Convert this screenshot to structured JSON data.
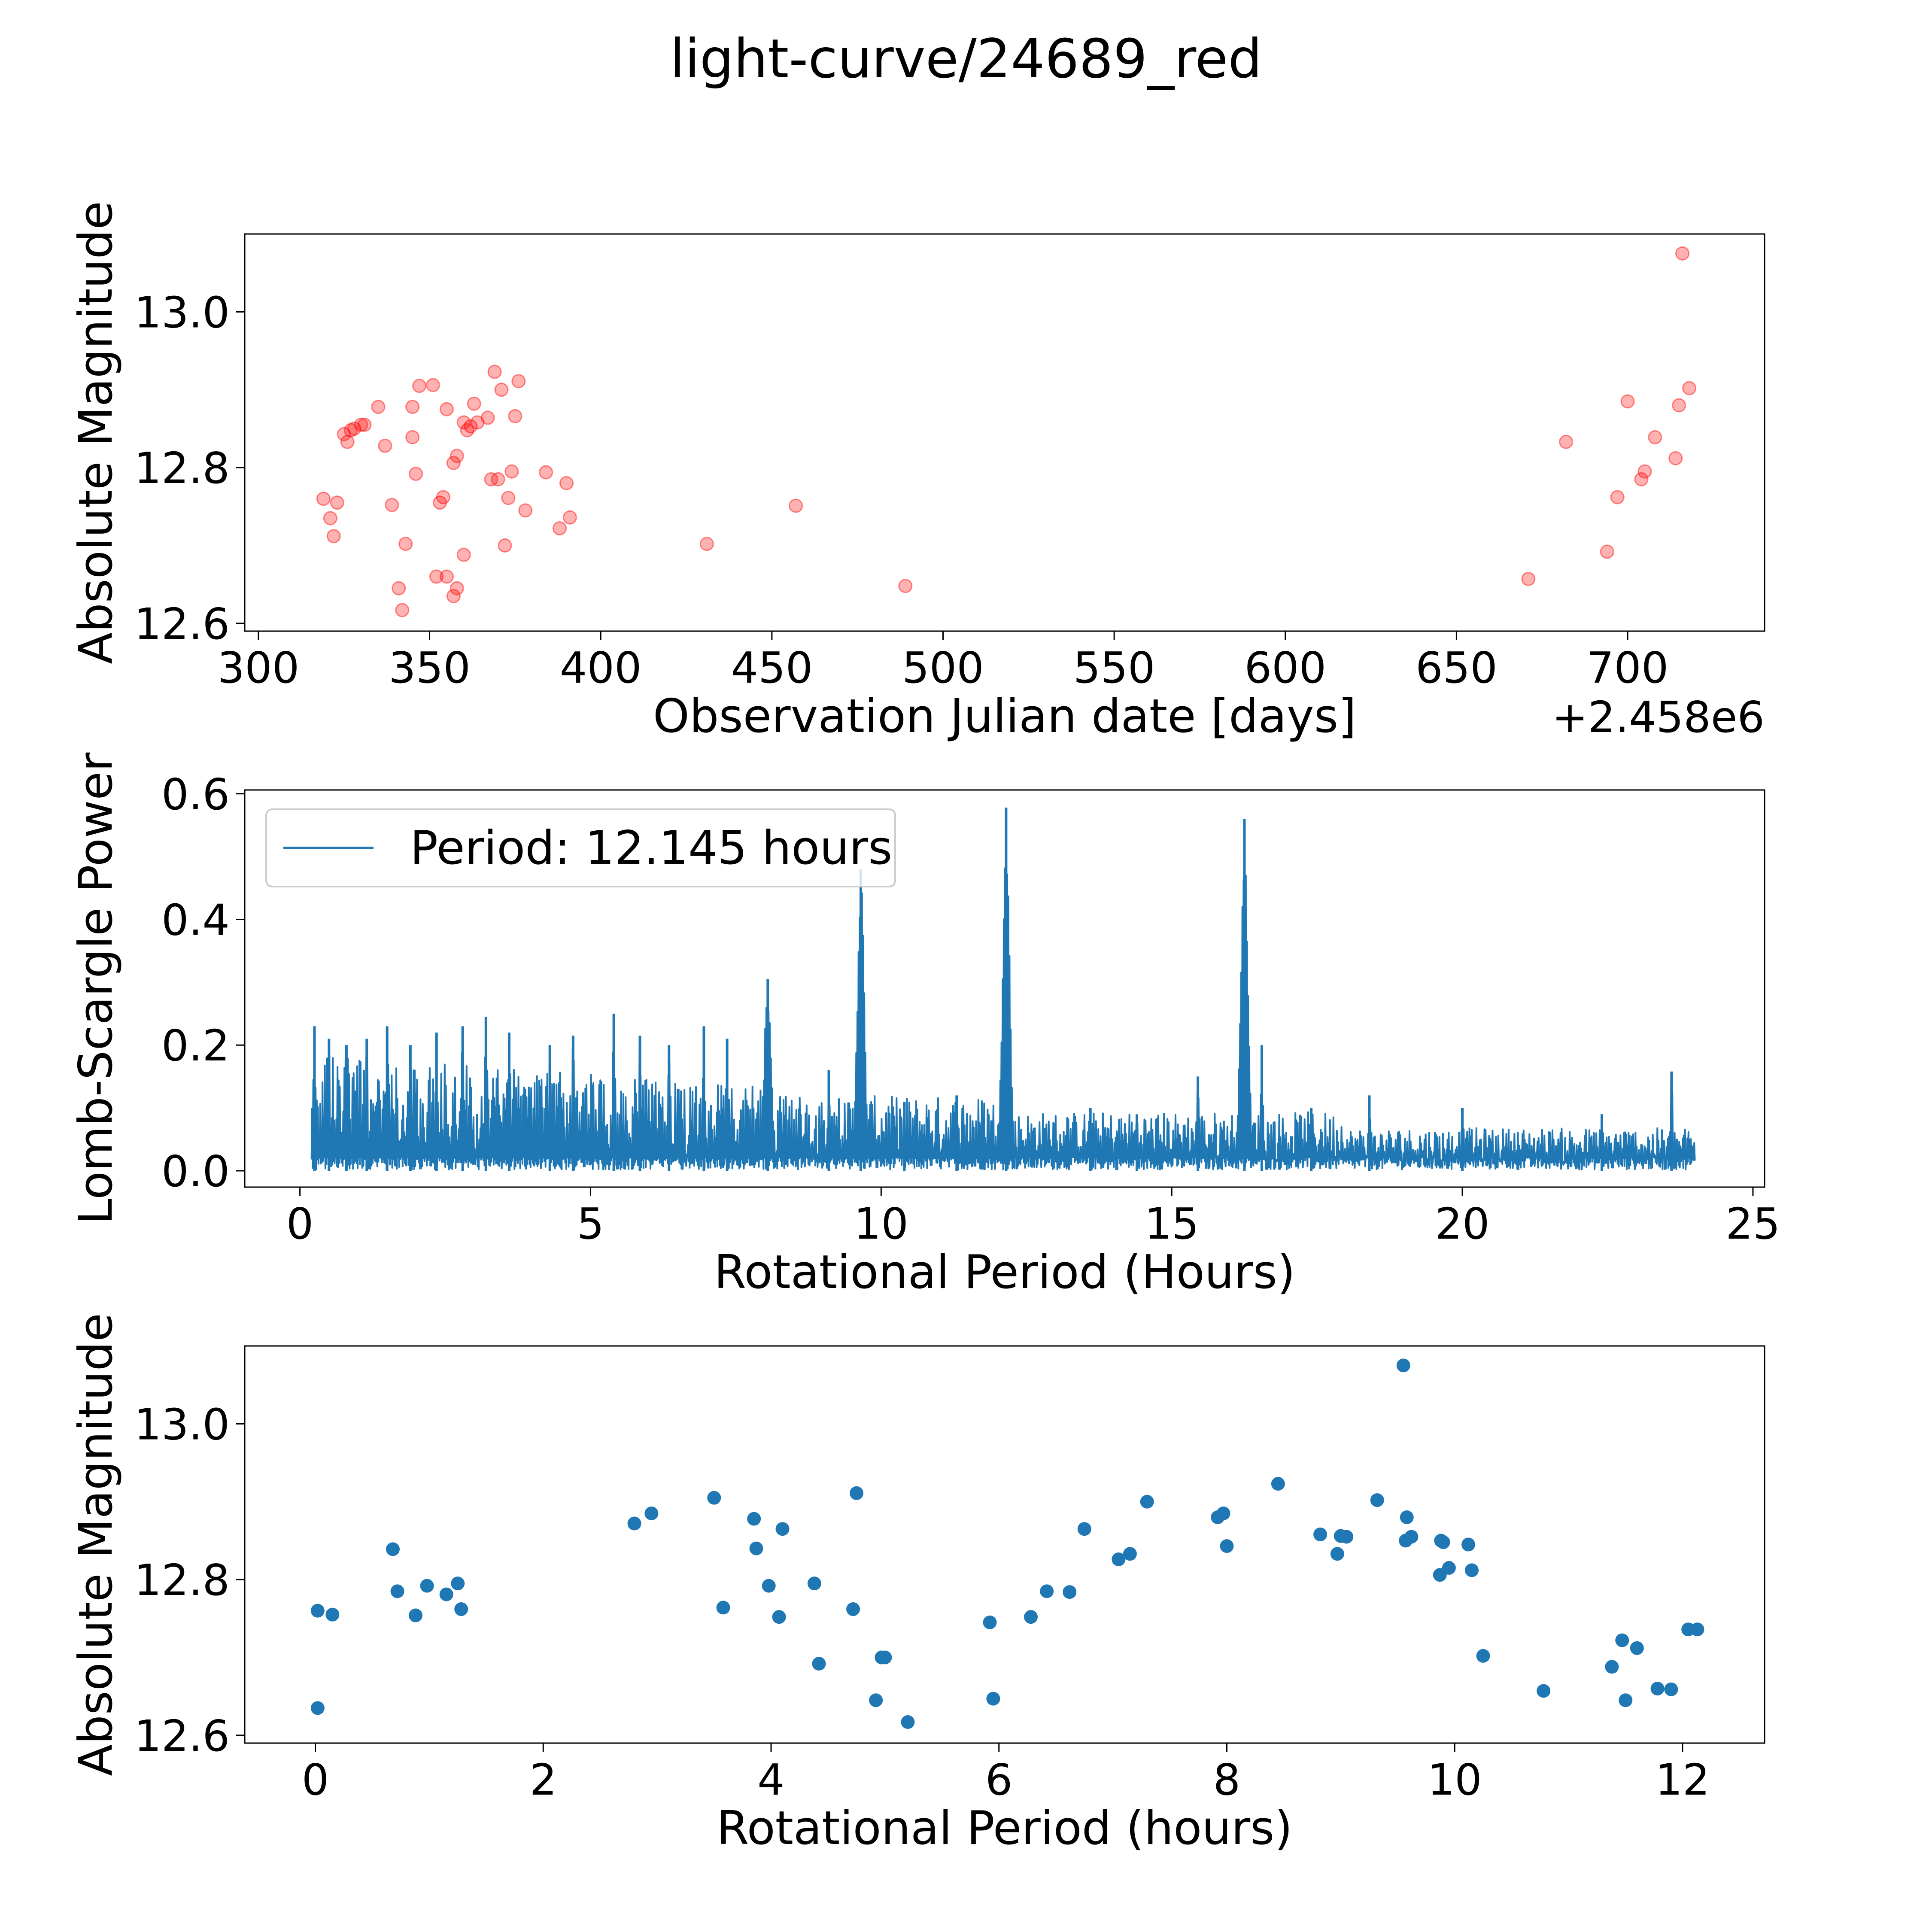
{
  "figure_title": "light-curve/24689_red",
  "chart_data": [
    {
      "type": "scatter",
      "title": "",
      "xlabel": "Observation Julian date [days]",
      "ylabel": "Absolute Magnitude",
      "x_offset_label": "+2.458e6",
      "xlim": [
        296,
        740
      ],
      "ylim": [
        12.59,
        13.1
      ],
      "xticks": [
        300,
        350,
        400,
        450,
        500,
        550,
        600,
        650,
        700
      ],
      "xtick_labels": [
        "300",
        "350",
        "400",
        "450",
        "500",
        "550",
        "600",
        "650",
        "700"
      ],
      "yticks": [
        12.6,
        12.8,
        13.0
      ],
      "ytick_labels": [
        "12.6",
        "12.8",
        "13.0"
      ],
      "marker_color": "#ff0000",
      "marker_alpha": 0.3,
      "points": [
        {
          "x": 319,
          "y": 12.76
        },
        {
          "x": 321,
          "y": 12.735
        },
        {
          "x": 322,
          "y": 12.712
        },
        {
          "x": 323,
          "y": 12.755
        },
        {
          "x": 325,
          "y": 12.843
        },
        {
          "x": 326,
          "y": 12.833
        },
        {
          "x": 327,
          "y": 12.848
        },
        {
          "x": 328,
          "y": 12.85
        },
        {
          "x": 330,
          "y": 12.855
        },
        {
          "x": 331,
          "y": 12.855
        },
        {
          "x": 335,
          "y": 12.878
        },
        {
          "x": 337,
          "y": 12.828
        },
        {
          "x": 339,
          "y": 12.752
        },
        {
          "x": 341,
          "y": 12.645
        },
        {
          "x": 342,
          "y": 12.617
        },
        {
          "x": 343,
          "y": 12.702
        },
        {
          "x": 345,
          "y": 12.878
        },
        {
          "x": 345,
          "y": 12.839
        },
        {
          "x": 346,
          "y": 12.792
        },
        {
          "x": 347,
          "y": 12.905
        },
        {
          "x": 351,
          "y": 12.906
        },
        {
          "x": 352,
          "y": 12.66
        },
        {
          "x": 353,
          "y": 12.755
        },
        {
          "x": 354,
          "y": 12.762
        },
        {
          "x": 355,
          "y": 12.875
        },
        {
          "x": 355,
          "y": 12.66
        },
        {
          "x": 357,
          "y": 12.806
        },
        {
          "x": 357,
          "y": 12.635
        },
        {
          "x": 358,
          "y": 12.645
        },
        {
          "x": 358,
          "y": 12.815
        },
        {
          "x": 360,
          "y": 12.688
        },
        {
          "x": 360,
          "y": 12.858
        },
        {
          "x": 361,
          "y": 12.848
        },
        {
          "x": 362,
          "y": 12.853
        },
        {
          "x": 363,
          "y": 12.882
        },
        {
          "x": 364,
          "y": 12.858
        },
        {
          "x": 367,
          "y": 12.864
        },
        {
          "x": 368,
          "y": 12.785
        },
        {
          "x": 369,
          "y": 12.923
        },
        {
          "x": 370,
          "y": 12.785
        },
        {
          "x": 371,
          "y": 12.9
        },
        {
          "x": 372,
          "y": 12.7
        },
        {
          "x": 373,
          "y": 12.761
        },
        {
          "x": 374,
          "y": 12.795
        },
        {
          "x": 375,
          "y": 12.866
        },
        {
          "x": 376,
          "y": 12.911
        },
        {
          "x": 378,
          "y": 12.745
        },
        {
          "x": 384,
          "y": 12.794
        },
        {
          "x": 388,
          "y": 12.722
        },
        {
          "x": 390,
          "y": 12.78
        },
        {
          "x": 391,
          "y": 12.736
        },
        {
          "x": 431,
          "y": 12.702
        },
        {
          "x": 457,
          "y": 12.751
        },
        {
          "x": 489,
          "y": 12.648
        },
        {
          "x": 671,
          "y": 12.657
        },
        {
          "x": 682,
          "y": 12.833
        },
        {
          "x": 694,
          "y": 12.692
        },
        {
          "x": 697,
          "y": 12.762
        },
        {
          "x": 700,
          "y": 12.885
        },
        {
          "x": 704,
          "y": 12.785
        },
        {
          "x": 705,
          "y": 12.795
        },
        {
          "x": 708,
          "y": 12.839
        },
        {
          "x": 714,
          "y": 12.812
        },
        {
          "x": 715,
          "y": 12.88
        },
        {
          "x": 716,
          "y": 13.075
        },
        {
          "x": 718,
          "y": 12.902
        }
      ]
    },
    {
      "type": "line",
      "title": "",
      "xlabel": "Rotational Period (Hours)",
      "ylabel": "Lomb-Scargle Power",
      "xlim": [
        -0.95,
        25.2
      ],
      "ylim": [
        -0.026,
        0.606
      ],
      "xticks": [
        0,
        5,
        10,
        15,
        20,
        25
      ],
      "xtick_labels": [
        "0",
        "5",
        "10",
        "15",
        "20",
        "25"
      ],
      "yticks": [
        0.0,
        0.2,
        0.4,
        0.6
      ],
      "ytick_labels": [
        "0.0",
        "0.2",
        "0.4",
        "0.6"
      ],
      "line_color": "#1f77b4",
      "x_range": [
        0.2,
        24.0
      ],
      "legend_label": "Period: 12.145 hours",
      "legend_placement": "upper-left",
      "peaks": [
        {
          "x": 0.25,
          "y": 0.23
        },
        {
          "x": 0.5,
          "y": 0.21
        },
        {
          "x": 0.8,
          "y": 0.2
        },
        {
          "x": 1.15,
          "y": 0.21
        },
        {
          "x": 1.5,
          "y": 0.23
        },
        {
          "x": 1.9,
          "y": 0.2
        },
        {
          "x": 2.35,
          "y": 0.22
        },
        {
          "x": 2.8,
          "y": 0.23
        },
        {
          "x": 3.2,
          "y": 0.245
        },
        {
          "x": 3.6,
          "y": 0.22
        },
        {
          "x": 4.3,
          "y": 0.2
        },
        {
          "x": 4.7,
          "y": 0.215
        },
        {
          "x": 5.4,
          "y": 0.25
        },
        {
          "x": 5.85,
          "y": 0.215
        },
        {
          "x": 6.35,
          "y": 0.2
        },
        {
          "x": 6.95,
          "y": 0.23
        },
        {
          "x": 7.35,
          "y": 0.21
        },
        {
          "x": 8.05,
          "y": 0.305
        },
        {
          "x": 9.1,
          "y": 0.16
        },
        {
          "x": 9.65,
          "y": 0.48
        },
        {
          "x": 10.4,
          "y": 0.11
        },
        {
          "x": 11.3,
          "y": 0.12
        },
        {
          "x": 12.15,
          "y": 0.578
        },
        {
          "x": 13.6,
          "y": 0.1
        },
        {
          "x": 14.4,
          "y": 0.09
        },
        {
          "x": 15.45,
          "y": 0.15
        },
        {
          "x": 16.25,
          "y": 0.56
        },
        {
          "x": 16.55,
          "y": 0.2
        },
        {
          "x": 17.4,
          "y": 0.1
        },
        {
          "x": 18.4,
          "y": 0.12
        },
        {
          "x": 20.0,
          "y": 0.1
        },
        {
          "x": 22.4,
          "y": 0.09
        },
        {
          "x": 23.6,
          "y": 0.158
        }
      ]
    },
    {
      "type": "scatter",
      "title": "",
      "xlabel": "Rotational Period (hours)",
      "ylabel": "Absolute Magnitude",
      "xlim": [
        -0.62,
        12.72
      ],
      "ylim": [
        12.59,
        13.1
      ],
      "xticks": [
        0,
        2,
        4,
        6,
        8,
        10,
        12
      ],
      "xtick_labels": [
        "0",
        "2",
        "4",
        "6",
        "8",
        "10",
        "12"
      ],
      "yticks": [
        12.6,
        12.8,
        13.0
      ],
      "ytick_labels": [
        "12.6",
        "12.8",
        "13.0"
      ],
      "marker_color": "#1f77b4",
      "points": [
        {
          "x": 0.02,
          "y": 12.635
        },
        {
          "x": 0.02,
          "y": 12.76
        },
        {
          "x": 0.15,
          "y": 12.755
        },
        {
          "x": 0.68,
          "y": 12.839
        },
        {
          "x": 0.72,
          "y": 12.785
        },
        {
          "x": 0.88,
          "y": 12.754
        },
        {
          "x": 0.98,
          "y": 12.792
        },
        {
          "x": 1.15,
          "y": 12.781
        },
        {
          "x": 1.25,
          "y": 12.795
        },
        {
          "x": 1.28,
          "y": 12.762
        },
        {
          "x": 2.8,
          "y": 12.872
        },
        {
          "x": 2.95,
          "y": 12.885
        },
        {
          "x": 3.5,
          "y": 12.905
        },
        {
          "x": 3.58,
          "y": 12.764
        },
        {
          "x": 3.85,
          "y": 12.878
        },
        {
          "x": 3.87,
          "y": 12.84
        },
        {
          "x": 3.98,
          "y": 12.792
        },
        {
          "x": 4.07,
          "y": 12.752
        },
        {
          "x": 4.1,
          "y": 12.865
        },
        {
          "x": 4.38,
          "y": 12.795
        },
        {
          "x": 4.42,
          "y": 12.692
        },
        {
          "x": 4.72,
          "y": 12.762
        },
        {
          "x": 4.75,
          "y": 12.911
        },
        {
          "x": 4.92,
          "y": 12.645
        },
        {
          "x": 4.97,
          "y": 12.7
        },
        {
          "x": 5.0,
          "y": 12.7
        },
        {
          "x": 5.2,
          "y": 12.617
        },
        {
          "x": 5.92,
          "y": 12.745
        },
        {
          "x": 5.95,
          "y": 12.647
        },
        {
          "x": 6.28,
          "y": 12.752
        },
        {
          "x": 6.42,
          "y": 12.785
        },
        {
          "x": 6.62,
          "y": 12.784
        },
        {
          "x": 6.75,
          "y": 12.865
        },
        {
          "x": 7.05,
          "y": 12.826
        },
        {
          "x": 7.15,
          "y": 12.833
        },
        {
          "x": 7.3,
          "y": 12.9
        },
        {
          "x": 7.92,
          "y": 12.88
        },
        {
          "x": 7.97,
          "y": 12.885
        },
        {
          "x": 8.0,
          "y": 12.843
        },
        {
          "x": 8.45,
          "y": 12.923
        },
        {
          "x": 8.82,
          "y": 12.858
        },
        {
          "x": 8.97,
          "y": 12.833
        },
        {
          "x": 9.0,
          "y": 12.856
        },
        {
          "x": 9.05,
          "y": 12.855
        },
        {
          "x": 9.32,
          "y": 12.902
        },
        {
          "x": 9.55,
          "y": 13.075
        },
        {
          "x": 9.57,
          "y": 12.85
        },
        {
          "x": 9.58,
          "y": 12.88
        },
        {
          "x": 9.62,
          "y": 12.855
        },
        {
          "x": 9.87,
          "y": 12.806
        },
        {
          "x": 9.88,
          "y": 12.85
        },
        {
          "x": 9.9,
          "y": 12.848
        },
        {
          "x": 9.95,
          "y": 12.815
        },
        {
          "x": 10.12,
          "y": 12.845
        },
        {
          "x": 10.15,
          "y": 12.812
        },
        {
          "x": 10.25,
          "y": 12.702
        },
        {
          "x": 10.78,
          "y": 12.657
        },
        {
          "x": 11.38,
          "y": 12.688
        },
        {
          "x": 11.47,
          "y": 12.722
        },
        {
          "x": 11.5,
          "y": 12.645
        },
        {
          "x": 11.6,
          "y": 12.712
        },
        {
          "x": 11.78,
          "y": 12.66
        },
        {
          "x": 11.9,
          "y": 12.659
        },
        {
          "x": 12.05,
          "y": 12.736
        },
        {
          "x": 12.13,
          "y": 12.736
        }
      ]
    }
  ]
}
